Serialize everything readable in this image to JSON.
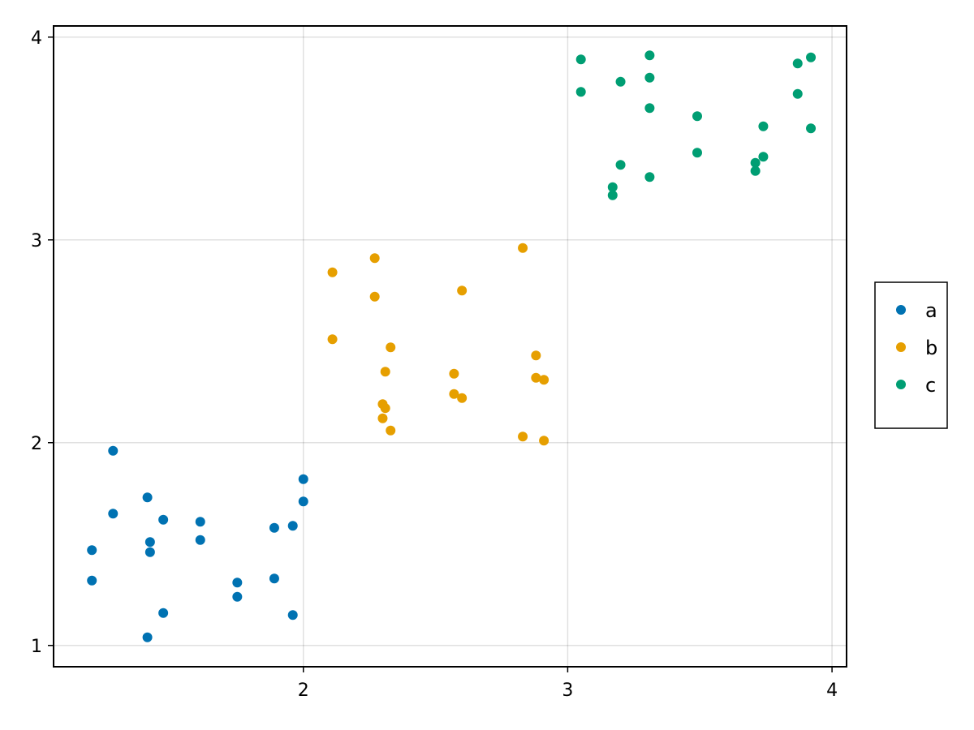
{
  "chart_data": {
    "type": "scatter",
    "title": "",
    "xlabel": "",
    "ylabel": "",
    "xlim": [
      1.055,
      4.055
    ],
    "ylim": [
      0.895,
      4.055
    ],
    "x_ticks": [
      2,
      3,
      4
    ],
    "y_ticks": [
      1,
      2,
      3,
      4
    ],
    "x_tick_labels": [
      "2",
      "3",
      "4"
    ],
    "y_tick_labels": [
      "1",
      "2",
      "3",
      "4"
    ],
    "grid": true,
    "legend_position": "right",
    "series": [
      {
        "name": "a",
        "color": "#0072b2",
        "points": [
          {
            "x": 1.2,
            "y": 1.47
          },
          {
            "x": 1.2,
            "y": 1.32
          },
          {
            "x": 1.28,
            "y": 1.96
          },
          {
            "x": 1.28,
            "y": 1.65
          },
          {
            "x": 1.41,
            "y": 1.73
          },
          {
            "x": 1.42,
            "y": 1.51
          },
          {
            "x": 1.42,
            "y": 1.46
          },
          {
            "x": 1.41,
            "y": 1.04
          },
          {
            "x": 1.47,
            "y": 1.62
          },
          {
            "x": 1.47,
            "y": 1.16
          },
          {
            "x": 1.61,
            "y": 1.61
          },
          {
            "x": 1.61,
            "y": 1.52
          },
          {
            "x": 1.75,
            "y": 1.31
          },
          {
            "x": 1.75,
            "y": 1.24
          },
          {
            "x": 1.89,
            "y": 1.58
          },
          {
            "x": 1.89,
            "y": 1.33
          },
          {
            "x": 1.96,
            "y": 1.59
          },
          {
            "x": 1.96,
            "y": 1.15
          },
          {
            "x": 2.0,
            "y": 1.82
          },
          {
            "x": 2.0,
            "y": 1.71
          }
        ]
      },
      {
        "name": "b",
        "color": "#e69f00",
        "points": [
          {
            "x": 2.11,
            "y": 2.84
          },
          {
            "x": 2.11,
            "y": 2.51
          },
          {
            "x": 2.27,
            "y": 2.91
          },
          {
            "x": 2.27,
            "y": 2.72
          },
          {
            "x": 2.3,
            "y": 2.19
          },
          {
            "x": 2.3,
            "y": 2.12
          },
          {
            "x": 2.31,
            "y": 2.35
          },
          {
            "x": 2.31,
            "y": 2.17
          },
          {
            "x": 2.33,
            "y": 2.47
          },
          {
            "x": 2.33,
            "y": 2.06
          },
          {
            "x": 2.57,
            "y": 2.34
          },
          {
            "x": 2.57,
            "y": 2.24
          },
          {
            "x": 2.6,
            "y": 2.75
          },
          {
            "x": 2.6,
            "y": 2.22
          },
          {
            "x": 2.83,
            "y": 2.96
          },
          {
            "x": 2.83,
            "y": 2.03
          },
          {
            "x": 2.88,
            "y": 2.43
          },
          {
            "x": 2.88,
            "y": 2.32
          },
          {
            "x": 2.91,
            "y": 2.31
          },
          {
            "x": 2.91,
            "y": 2.01
          }
        ]
      },
      {
        "name": "c",
        "color": "#009e73",
        "points": [
          {
            "x": 3.05,
            "y": 3.89
          },
          {
            "x": 3.05,
            "y": 3.73
          },
          {
            "x": 3.17,
            "y": 3.26
          },
          {
            "x": 3.17,
            "y": 3.22
          },
          {
            "x": 3.2,
            "y": 3.78
          },
          {
            "x": 3.2,
            "y": 3.37
          },
          {
            "x": 3.31,
            "y": 3.91
          },
          {
            "x": 3.31,
            "y": 3.31
          },
          {
            "x": 3.31,
            "y": 3.8
          },
          {
            "x": 3.31,
            "y": 3.65
          },
          {
            "x": 3.49,
            "y": 3.61
          },
          {
            "x": 3.49,
            "y": 3.43
          },
          {
            "x": 3.71,
            "y": 3.38
          },
          {
            "x": 3.71,
            "y": 3.34
          },
          {
            "x": 3.74,
            "y": 3.56
          },
          {
            "x": 3.74,
            "y": 3.41
          },
          {
            "x": 3.87,
            "y": 3.87
          },
          {
            "x": 3.87,
            "y": 3.72
          },
          {
            "x": 3.92,
            "y": 3.9
          },
          {
            "x": 3.92,
            "y": 3.55
          }
        ]
      }
    ]
  }
}
